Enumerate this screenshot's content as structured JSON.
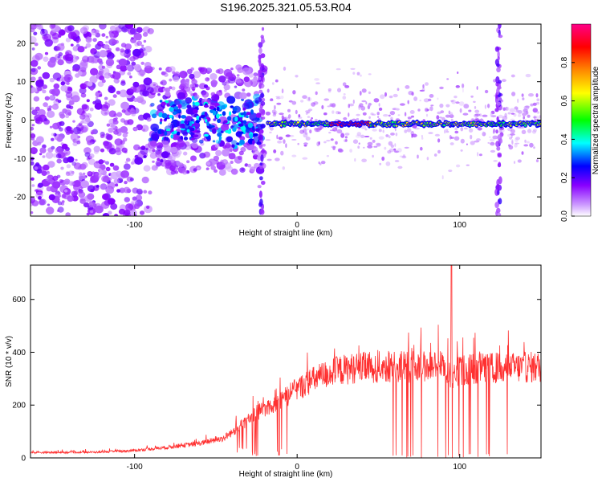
{
  "page": {
    "title": "S196.2025.321.05.53.R04"
  },
  "chart_data": [
    {
      "type": "heatmap",
      "xlabel": "Height of straight line (km)",
      "ylabel": "Frequency (Hz)",
      "xlim": [
        -164,
        150
      ],
      "ylim": [
        -25,
        25
      ],
      "xticks": [
        -100,
        0,
        100
      ],
      "yticks": [
        -20,
        -10,
        0,
        10,
        20
      ],
      "grid": false,
      "colorbar": {
        "label": "Normalized spectral amplitude",
        "range": [
          0,
          1
        ],
        "ticks": [
          0.0,
          0.2,
          0.4,
          0.6,
          0.8
        ],
        "tick_labels": [
          "0.0",
          "0.2",
          "0.4",
          "0.6",
          "0.8"
        ],
        "colormap": [
          "#ffffff",
          "#8800ff",
          "#0000ff",
          "#00ffff",
          "#00ff00",
          "#ffff00",
          "#ff8800",
          "#ff0000",
          "#ff0088"
        ]
      },
      "features": {
        "ridge_frequency_hz": -1,
        "ridge_start_km": -18,
        "noise_region_km": [
          -164,
          -20
        ],
        "vertical_streaks_km": [
          -22,
          124
        ]
      }
    },
    {
      "type": "line",
      "xlabel": "Height of straight line (km)",
      "ylabel": "SNR (10 * v/v)",
      "xlim": [
        -164,
        150
      ],
      "ylim": [
        0,
        730
      ],
      "xticks": [
        -100,
        0,
        100
      ],
      "yticks": [
        0,
        200,
        400,
        600
      ],
      "grid": false,
      "series_color": "#ff3030",
      "trend": {
        "x": [
          -164,
          -120,
          -100,
          -80,
          -60,
          -45,
          -35,
          -25,
          -15,
          -5,
          5,
          15,
          25,
          35,
          50,
          70,
          90,
          95,
          100,
          110,
          130,
          150
        ],
        "y": [
          20,
          22,
          28,
          40,
          55,
          75,
          120,
          170,
          200,
          240,
          280,
          310,
          330,
          340,
          345,
          345,
          350,
          300,
          330,
          340,
          340,
          345
        ]
      },
      "spike": {
        "x": 95,
        "y": 730
      }
    }
  ]
}
